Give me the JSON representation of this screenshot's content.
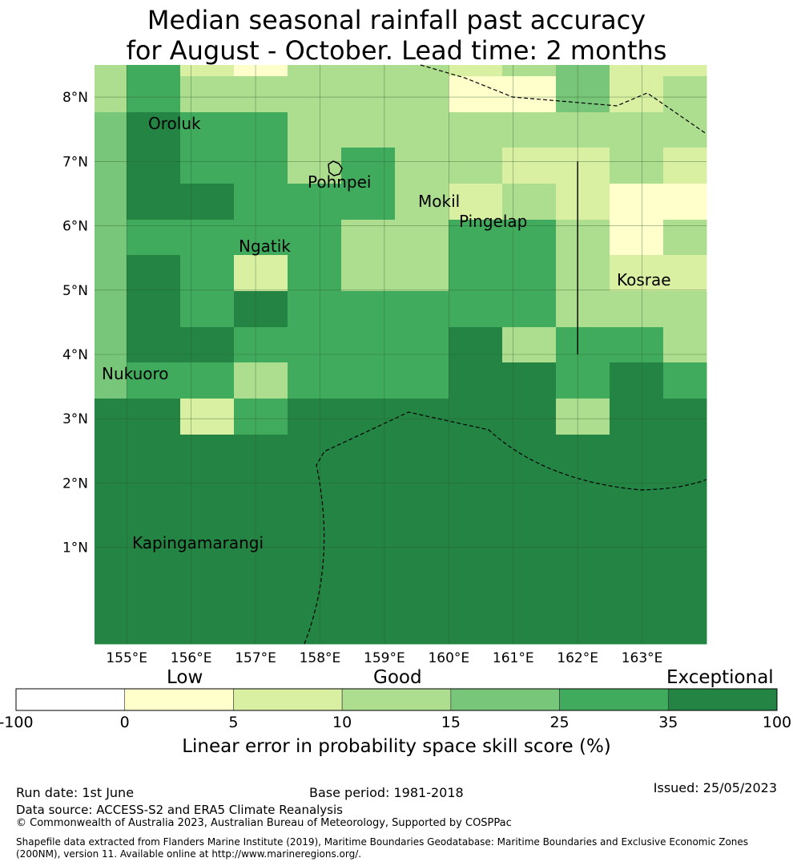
{
  "title": {
    "line1": "Median seasonal rainfall past accuracy",
    "line2": "for August - October. Lead time: 2 months"
  },
  "map": {
    "lon_range": [
      154.5,
      164.0
    ],
    "lat_range": [
      -0.5,
      8.5
    ],
    "lon_ticks": [
      "155°E",
      "156°E",
      "157°E",
      "158°E",
      "159°E",
      "160°E",
      "161°E",
      "162°E",
      "163°E"
    ],
    "lat_ticks": [
      "1°N",
      "2°N",
      "3°N",
      "4°N",
      "5°N",
      "6°N",
      "7°N",
      "8°N"
    ],
    "places": [
      {
        "name": "Oroluk",
        "lon": 155.3,
        "lat": 7.6
      },
      {
        "name": "Pohnpei",
        "lon": 158.2,
        "lat": 6.8
      },
      {
        "name": "Mokil",
        "lon": 159.8,
        "lat": 6.7
      },
      {
        "name": "Pingelap",
        "lon": 160.7,
        "lat": 6.2
      },
      {
        "name": "Ngatik",
        "lon": 157.2,
        "lat": 5.8
      },
      {
        "name": "Kosrae",
        "lon": 163.0,
        "lat": 5.3
      },
      {
        "name": "Nukuoro",
        "lon": 154.8,
        "lat": 3.85
      },
      {
        "name": "Kapingamarangi",
        "lon": 154.8,
        "lat": 1.07
      }
    ],
    "grid_columns": 11,
    "grid_rows": 15,
    "grid_classes": [
      [
        3,
        5,
        2,
        1,
        3,
        3,
        3,
        2,
        3,
        4,
        2,
        2
      ],
      [
        3,
        5,
        3,
        3,
        3,
        3,
        3,
        1,
        1,
        4,
        2,
        3
      ],
      [
        4,
        6,
        5,
        5,
        3,
        3,
        3,
        3,
        3,
        3,
        3,
        3
      ],
      [
        4,
        6,
        5,
        5,
        3,
        5,
        3,
        3,
        2,
        2,
        3,
        2
      ],
      [
        4,
        6,
        6,
        5,
        5,
        5,
        3,
        2,
        3,
        2,
        1,
        1
      ],
      [
        4,
        5,
        5,
        5,
        5,
        3,
        3,
        5,
        5,
        3,
        1,
        3
      ],
      [
        4,
        6,
        5,
        2,
        5,
        3,
        3,
        5,
        5,
        3,
        2,
        2
      ],
      [
        4,
        6,
        5,
        6,
        5,
        5,
        5,
        5,
        5,
        3,
        3,
        3
      ],
      [
        4,
        6,
        6,
        5,
        5,
        5,
        5,
        6,
        3,
        5,
        5,
        3
      ],
      [
        4,
        5,
        5,
        3,
        5,
        5,
        5,
        6,
        6,
        5,
        6,
        5
      ],
      [
        6,
        6,
        2,
        5,
        6,
        6,
        6,
        6,
        6,
        3,
        6,
        6
      ],
      [
        6,
        6,
        6,
        6,
        6,
        6,
        6,
        6,
        6,
        6,
        6,
        6
      ],
      [
        6,
        6,
        6,
        6,
        6,
        6,
        6,
        6,
        6,
        6,
        6,
        6
      ],
      [
        6,
        6,
        6,
        6,
        6,
        6,
        6,
        6,
        6,
        6,
        6,
        6
      ],
      [
        6,
        6,
        6,
        6,
        6,
        6,
        6,
        6,
        6,
        6,
        6,
        6
      ],
      [
        6,
        6,
        6,
        6,
        6,
        6,
        6,
        6,
        6,
        6,
        6,
        6
      ]
    ],
    "boundary_line": {
      "lon": 162.0,
      "lat_from": 4.0,
      "lat_to": 7.0
    }
  },
  "colorbar": {
    "qualitative": [
      "Low",
      "Good",
      "Exceptional"
    ],
    "ticks": [
      "-100",
      "0",
      "5",
      "10",
      "15",
      "25",
      "35",
      "100"
    ],
    "colors": [
      "#ffffff",
      "#ffffcc",
      "#d9f0a3",
      "#addd8e",
      "#78c679",
      "#41ab5d",
      "#238443"
    ],
    "title": "Linear error in probability space skill score (%)"
  },
  "footer": {
    "run_date": "Run date: 1st June",
    "base_period": "Base period: 1981-2018",
    "issued": "Issued: 25/05/2023",
    "data_source": "Data source: ACCESS-S2 and ERA5 Climate Reanalysis",
    "copyright": "© Commonwealth of Australia 2023, Australian Bureau of Meteorology, Supported by COSPPac",
    "shapefile": "Shapefile data extracted from Flanders Marine Institute (2019), Maritime Boundaries Geodatabase: Maritime Boundaries and Exclusive Economic Zones (200NM), version 11. Available online at http://www.marineregions.org/."
  }
}
